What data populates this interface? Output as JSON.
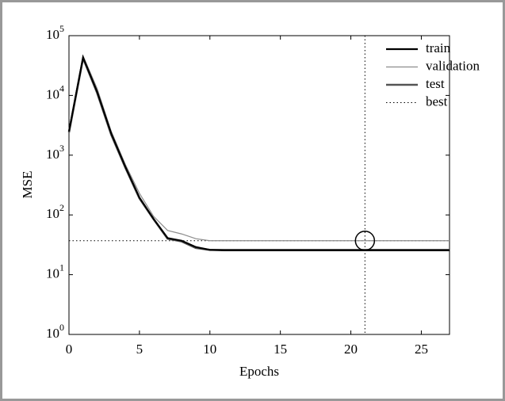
{
  "chart_data": {
    "type": "line",
    "xlabel": "Epochs",
    "ylabel": "MSE",
    "x": [
      0,
      1,
      2,
      3,
      4,
      5,
      6,
      7,
      8,
      9,
      10,
      11,
      12,
      13,
      14,
      15,
      16,
      17,
      18,
      19,
      20,
      21,
      22,
      23,
      24,
      25,
      26,
      27
    ],
    "series": [
      {
        "name": "train",
        "color": "#000000",
        "values": [
          2500,
          43000,
          11500,
          2300,
          640,
          195,
          86,
          41,
          37,
          29,
          26,
          25.5,
          25.5,
          25.5,
          25.5,
          25.5,
          25.5,
          25.5,
          25.5,
          25.5,
          25.5,
          25.5,
          25.5,
          25.5,
          25.5,
          25.5,
          25.5,
          25.5
        ]
      },
      {
        "name": "validation",
        "color": "#8c8c8c",
        "values": [
          2700,
          46000,
          13000,
          2500,
          700,
          230,
          95,
          55,
          48,
          40,
          37,
          37,
          37,
          37,
          37,
          37,
          37,
          37,
          37,
          37,
          37,
          37,
          37,
          37,
          37,
          37,
          37,
          37
        ]
      },
      {
        "name": "test",
        "color": "#555555",
        "values": [
          2400,
          42000,
          11000,
          2200,
          620,
          190,
          85,
          40,
          36,
          28,
          26,
          26,
          26,
          26,
          26,
          26,
          26,
          26,
          26,
          26,
          26,
          26,
          26,
          26,
          26,
          26,
          26,
          26
        ]
      }
    ],
    "best": {
      "name": "best",
      "epoch": 21,
      "value": 37
    },
    "xlim": [
      0,
      27
    ],
    "xticks": [
      0,
      5,
      10,
      15,
      20,
      25
    ],
    "ylim": [
      1,
      100000
    ],
    "log_y": true,
    "yticks": [
      {
        "value": 1,
        "label": "10^0"
      },
      {
        "value": 10,
        "label": "10^1"
      },
      {
        "value": 100,
        "label": "10^2"
      },
      {
        "value": 1000,
        "label": "10^3"
      },
      {
        "value": 10000,
        "label": "10^4"
      },
      {
        "value": 100000,
        "label": "10^5"
      }
    ]
  }
}
